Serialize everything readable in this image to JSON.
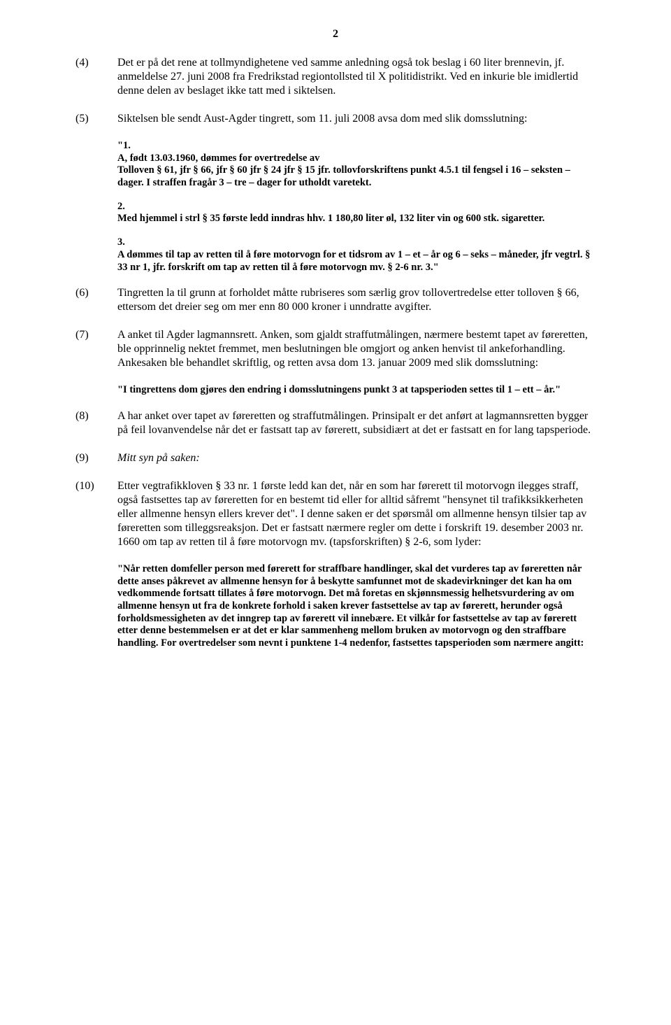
{
  "page_number": "2",
  "paras": {
    "p4": {
      "num": "(4)",
      "text": "Det er på det rene at tollmyndighetene ved samme anledning også tok beslag i 60 liter brennevin, jf. anmeldelse 27. juni 2008 fra Fredrikstad regiontollsted til X politidistrikt. Ved en inkurie ble imidlertid denne delen av beslaget ikke tatt med i siktelsen."
    },
    "p5": {
      "num": "(5)",
      "text": "Siktelsen ble sendt Aust-Agder tingrett, som 11. juli 2008 avsa dom med slik domsslutning:"
    },
    "q1": "\"1.\nA, født 13.03.1960, dømmes for overtredelse av\nTolloven § 61, jfr § 66, jfr § 60 jfr § 24 jfr § 15 jfr. tollovforskriftens punkt 4.5.1 til fengsel i 16 – seksten – dager. I straffen fragår 3 – tre – dager for utholdt varetekt.",
    "q2": "2.\nMed hjemmel i strl § 35 første ledd inndras hhv. 1 180,80 liter øl, 132 liter vin og 600 stk. sigaretter.",
    "q3": "3.\nA dømmes til tap av retten til å føre motorvogn for et tidsrom av 1 – et – år og 6 – seks – måneder, jfr vegtrl. § 33 nr 1, jfr. forskrift om tap av retten til å føre motorvogn mv. § 2-6 nr. 3.\"",
    "p6": {
      "num": "(6)",
      "text": "Tingretten la til grunn at forholdet måtte rubriseres som særlig grov tollovertredelse etter tolloven § 66, ettersom det dreier seg om mer enn 80 000 kroner i unndratte avgifter."
    },
    "p7": {
      "num": "(7)",
      "text": "A anket til Agder lagmannsrett. Anken, som gjaldt straffutmålingen, nærmere bestemt tapet av føreretten, ble opprinnelig nektet fremmet, men beslutningen ble omgjort og anken henvist til ankeforhandling. Ankesaken ble behandlet skriftlig, og retten avsa dom 13. januar 2009 med slik domsslutning:"
    },
    "q4": "\"I tingrettens dom gjøres den endring i domsslutningens punkt 3 at tapsperioden settes til 1 – ett – år.\"",
    "p8": {
      "num": "(8)",
      "text": "A har anket over tapet av føreretten og straffutmålingen. Prinsipalt er det anført at lagmannsretten bygger på feil lovanvendelse når det er fastsatt tap av førerett, subsidiært at det er fastsatt en for lang tapsperiode."
    },
    "p9": {
      "num": "(9)",
      "text": "Mitt syn på saken:"
    },
    "p10": {
      "num": "(10)",
      "text": "Etter vegtrafikkloven § 33 nr. 1 første ledd kan det, når en som har førerett til motorvogn ilegges straff, også fastsettes tap av føreretten for en bestemt tid eller for alltid såfremt \"hensynet til trafikksikkerheten eller allmenne hensyn ellers krever det\". I denne saken er det spørsmål om allmenne hensyn tilsier tap av føreretten som tilleggsreaksjon. Det er fastsatt nærmere regler om dette i forskrift 19. desember 2003 nr. 1660 om tap av retten til å føre motorvogn mv. (tapsforskriften) § 2-6, som lyder:"
    },
    "q5": "\"Når retten domfeller person med førerett for straffbare handlinger, skal det vurderes tap av føreretten når dette anses påkrevet av allmenne hensyn for å beskytte samfunnet mot de skadevirkninger det kan ha om vedkommende fortsatt tillates å føre motorvogn. Det må foretas en skjønnsmessig helhetsvurdering av om allmenne hensyn ut fra de konkrete forhold i saken krever fastsettelse av tap av førerett, herunder også forholdsmessigheten av det inngrep tap av førerett vil innebære. Et vilkår for fastsettelse av tap av førerett etter denne bestemmelsen er at det er klar sammenheng mellom bruken av motorvogn og den straffbare handling. For overtredelser som nevnt i punktene 1-4 nedenfor, fastsettes tapsperioden som nærmere angitt:"
  }
}
